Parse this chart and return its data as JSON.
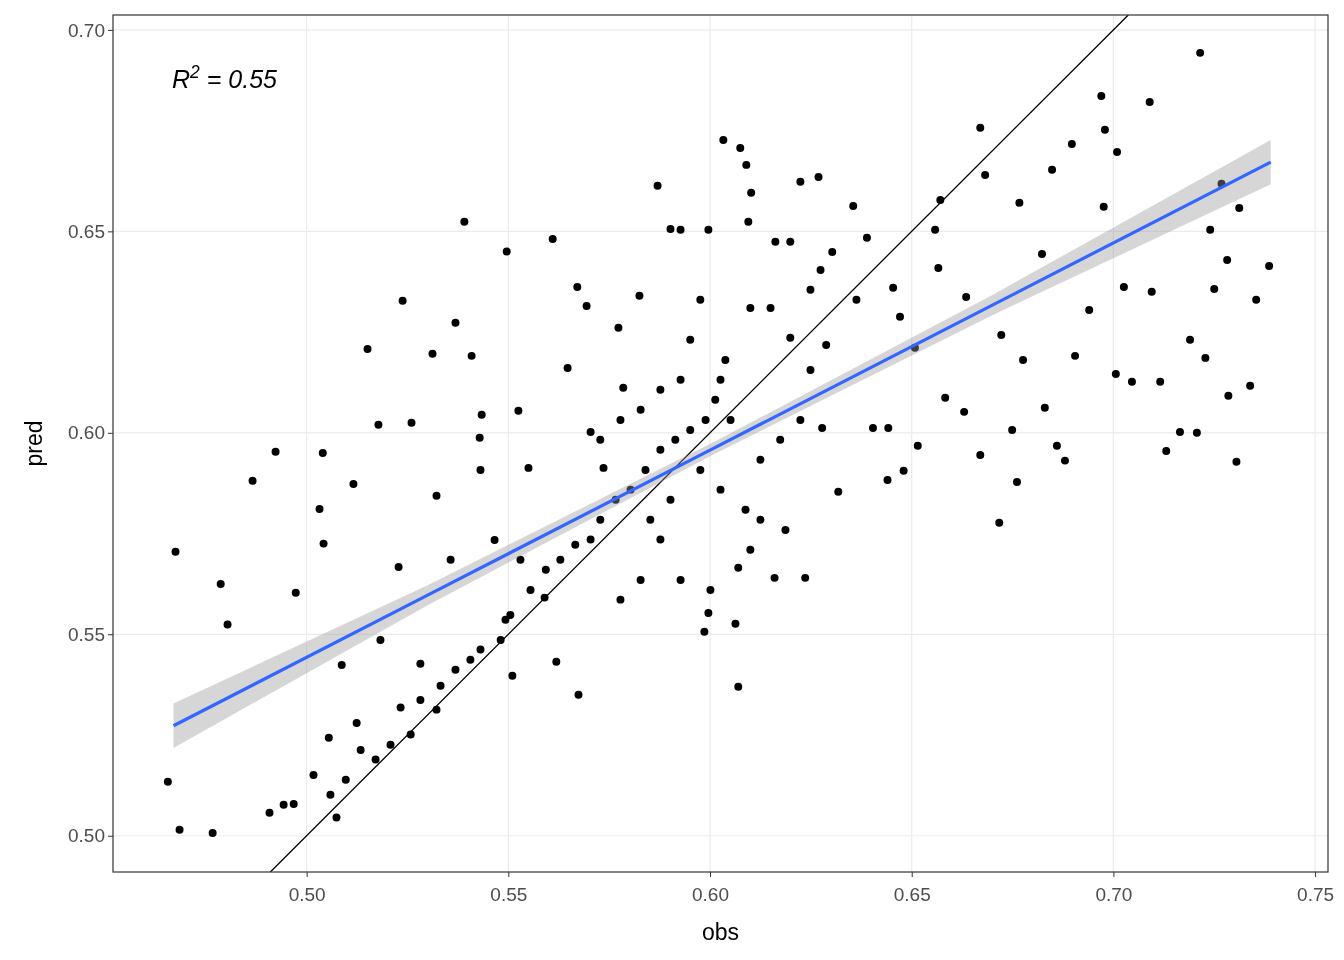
{
  "chart_data": {
    "type": "scatter",
    "xlabel": "obs",
    "ylabel": "pred",
    "annotations": [
      "R$^{2}$ = 0.55"
    ],
    "xlim": [
      0.452,
      0.7532
    ],
    "ylim": [
      0.491,
      0.7037
    ],
    "xticks": [
      {
        "value": 0.5,
        "label": "0.50"
      },
      {
        "value": 0.55,
        "label": "0.55"
      },
      {
        "value": 0.6,
        "label": "0.60"
      },
      {
        "value": 0.65,
        "label": "0.65"
      },
      {
        "value": 0.7,
        "label": "0.70"
      },
      {
        "value": 0.75,
        "label": "0.75"
      }
    ],
    "yticks": [
      {
        "value": 0.5,
        "label": "0.50"
      },
      {
        "value": 0.55,
        "label": "0.55"
      },
      {
        "value": 0.6,
        "label": "0.60"
      },
      {
        "value": 0.65,
        "label": "0.65"
      },
      {
        "value": 0.7,
        "label": "0.70"
      }
    ],
    "grid": true,
    "series": [
      {
        "marker": "circle",
        "color": "#000000",
        "x": [
          0.4656,
          0.4675,
          0.4685,
          0.4767,
          0.4787,
          0.4804,
          0.4866,
          0.4908,
          0.4923,
          0.4943,
          0.4968,
          0.4973,
          0.5017,
          0.5032,
          0.504,
          0.5042,
          0.5055,
          0.5074,
          0.5087,
          0.5116,
          0.5124,
          0.5151,
          0.5178,
          0.5238,
          0.5228,
          0.526,
          0.5282,
          0.5312,
          0.5322,
          0.5322,
          0.5369,
          0.5391,
          0.5409,
          0.5429,
          0.5434,
          0.5496,
          0.5525,
          0.561,
          0.555,
          0.5466,
          0.5493,
          0.551,
          0.559,
          0.5619,
          0.5674,
          0.5671,
          0.5694,
          0.5647,
          0.5704,
          0.5736,
          0.5773,
          0.5785,
          0.5825,
          0.587,
          0.5902,
          0.5927,
          0.5996,
          0.6033,
          0.6075,
          0.609,
          0.6102,
          0.6095,
          0.5986,
          0.5996,
          0.607,
          0.6063,
          0.607,
          0.6162,
          0.6199,
          0.6224,
          0.6269,
          0.6236,
          0.616,
          0.6303,
          0.6355,
          0.6389,
          0.6363,
          0.6288,
          0.6278,
          0.6318,
          0.6404,
          0.6442,
          0.644,
          0.648,
          0.6515,
          0.6454,
          0.6471,
          0.6508,
          0.6558,
          0.6571,
          0.6566,
          0.6583,
          0.663,
          0.6635,
          0.667,
          0.6682,
          0.667,
          0.6717,
          0.6722,
          0.6749,
          0.6761,
          0.6767,
          0.6776,
          0.6823,
          0.683,
          0.6848,
          0.686,
          0.688,
          0.6897,
          0.6905,
          0.697,
          0.6979,
          0.7009,
          0.694,
          0.6976,
          0.7006,
          0.7026,
          0.709,
          0.7046,
          0.7095,
          0.7116,
          0.7131,
          0.7165,
          0.7207,
          0.7215,
          0.719,
          0.7228,
          0.724,
          0.725,
          0.7282,
          0.7305,
          0.7285,
          0.7339,
          0.7354,
          0.7386,
          0.7312,
          0.7268,
          0.5233,
          0.5258,
          0.5282,
          0.5332,
          0.5369,
          0.5406,
          0.5431,
          0.5481,
          0.5505,
          0.5555,
          0.5593,
          0.5629,
          0.5666,
          0.5704,
          0.5728,
          0.5766,
          0.5803,
          0.584,
          0.5877,
          0.5914,
          0.5951,
          0.5989,
          0.6013,
          0.6026,
          0.6038,
          0.6051,
          0.5976,
          0.5951,
          0.5927,
          0.5877,
          0.5828,
          0.5778,
          0.5728,
          0.5852,
          0.5902,
          0.5976,
          0.6026,
          0.6088,
          0.6125,
          0.6187,
          0.6125,
          0.6174,
          0.6224,
          0.6249,
          0.6199,
          0.615,
          0.61,
          0.6249,
          0.6274,
          0.553,
          0.5431,
          0.5357,
          0.5183,
          0.5134,
          0.5171,
          0.5208,
          0.5059,
          0.5097,
          0.5778,
          0.5828,
          0.5927,
          0.6001,
          0.61,
          0.5877
        ],
        "values": [
          0.5134,
          0.5705,
          0.5015,
          0.5007,
          0.5625,
          0.5524,
          0.5881,
          0.5057,
          0.5953,
          0.5077,
          0.5079,
          0.5603,
          0.5151,
          0.5811,
          0.595,
          0.5725,
          0.5243,
          0.5045,
          0.5424,
          0.5873,
          0.528,
          0.6208,
          0.602,
          0.6328,
          0.5667,
          0.6025,
          0.5427,
          0.6196,
          0.5844,
          0.5313,
          0.6273,
          0.6524,
          0.6191,
          0.5988,
          0.6045,
          0.645,
          0.6055,
          0.6481,
          0.5913,
          0.5734,
          0.5536,
          0.5397,
          0.5591,
          0.5432,
          0.535,
          0.6362,
          0.6315,
          0.6161,
          0.6002,
          0.5913,
          0.6261,
          0.6112,
          0.634,
          0.6613,
          0.6506,
          0.6504,
          0.6504,
          0.6727,
          0.6707,
          0.6665,
          0.6596,
          0.6524,
          0.5506,
          0.5553,
          0.537,
          0.5526,
          0.5665,
          0.6474,
          0.6474,
          0.6623,
          0.6635,
          0.564,
          0.564,
          0.6449,
          0.6563,
          0.6484,
          0.633,
          0.6218,
          0.6012,
          0.5854,
          0.6012,
          0.6012,
          0.5883,
          0.5906,
          0.5968,
          0.636,
          0.6288,
          0.6211,
          0.6504,
          0.6578,
          0.6409,
          0.6087,
          0.6052,
          0.6337,
          0.6757,
          0.664,
          0.5945,
          0.5777,
          0.6243,
          0.6007,
          0.5878,
          0.6571,
          0.6181,
          0.6444,
          0.6062,
          0.6653,
          0.5968,
          0.5931,
          0.6717,
          0.6191,
          0.6836,
          0.6752,
          0.6697,
          0.6305,
          0.6561,
          0.6146,
          0.6362,
          0.6821,
          0.6127,
          0.635,
          0.6127,
          0.5955,
          0.6002,
          0.6,
          0.6943,
          0.6231,
          0.6186,
          0.6504,
          0.6357,
          0.6429,
          0.5928,
          0.6092,
          0.6117,
          0.633,
          0.6414,
          0.6558,
          0.6618,
          0.5318,
          0.5251,
          0.5337,
          0.5372,
          0.5412,
          0.5437,
          0.5462,
          0.5486,
          0.5548,
          0.561,
          0.566,
          0.5685,
          0.5722,
          0.5735,
          0.5784,
          0.5834,
          0.5859,
          0.5908,
          0.5958,
          0.5983,
          0.6007,
          0.6032,
          0.6082,
          0.6132,
          0.6181,
          0.6032,
          0.633,
          0.6231,
          0.6132,
          0.6107,
          0.6057,
          0.6032,
          0.5983,
          0.5784,
          0.5834,
          0.5908,
          0.5859,
          0.5809,
          0.5784,
          0.5759,
          0.5933,
          0.5983,
          0.6032,
          0.6156,
          0.6236,
          0.631,
          0.631,
          0.6355,
          0.6404,
          0.5685,
          0.5908,
          0.5685,
          0.5486,
          0.5213,
          0.5189,
          0.5226,
          0.5102,
          0.5139,
          0.5586,
          0.5635,
          0.5635,
          0.561,
          0.571,
          0.5735
        ]
      },
      {
        "type": "line",
        "marker": "none",
        "color": "#000000",
        "x": [
          0.491,
          0.7037
        ],
        "values": [
          0.491,
          0.7037
        ]
      },
      {
        "type": "line",
        "marker": "none",
        "color": "#3366ff",
        "x": [
          0.467,
          0.53,
          0.6,
          0.67,
          0.739
        ],
        "values": [
          0.5273,
          0.5597,
          0.5957,
          0.6317,
          0.6672
        ],
        "lower": [
          0.5218,
          0.5572,
          0.5942,
          0.6292,
          0.6617
        ],
        "upper": [
          0.5328,
          0.5622,
          0.5972,
          0.6342,
          0.6727
        ]
      }
    ]
  }
}
